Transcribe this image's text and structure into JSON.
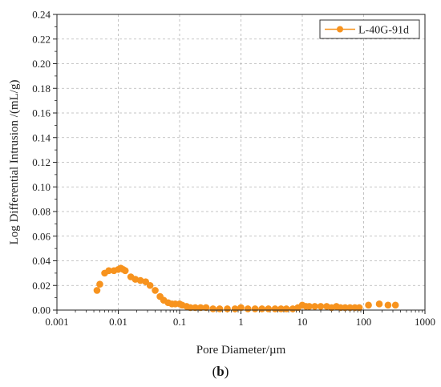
{
  "chart_data": {
    "type": "scatter",
    "xlabel": "Pore Diameter/µm",
    "ylabel": "Log Differential Intrusion /(mL/g)",
    "xscale": "log",
    "xlim": [
      0.001,
      1000
    ],
    "ylim": [
      0,
      0.24
    ],
    "x_ticks": [
      "0.001",
      "0.01",
      "0.1",
      "1",
      "10",
      "100",
      "1000"
    ],
    "y_ticks": [
      "0.00",
      "0.02",
      "0.04",
      "0.06",
      "0.08",
      "0.10",
      "0.12",
      "0.14",
      "0.16",
      "0.18",
      "0.20",
      "0.22",
      "0.24"
    ],
    "grid": true,
    "legend_position": "top-right",
    "series": [
      {
        "name": "L-40G-91d",
        "color": "#F7931E",
        "marker": "circle",
        "points": [
          [
            0.0045,
            0.016
          ],
          [
            0.005,
            0.021
          ],
          [
            0.006,
            0.03
          ],
          [
            0.007,
            0.032
          ],
          [
            0.0085,
            0.032
          ],
          [
            0.01,
            0.033
          ],
          [
            0.011,
            0.034
          ],
          [
            0.012,
            0.033
          ],
          [
            0.013,
            0.032
          ],
          [
            0.016,
            0.027
          ],
          [
            0.019,
            0.025
          ],
          [
            0.023,
            0.024
          ],
          [
            0.028,
            0.023
          ],
          [
            0.033,
            0.02
          ],
          [
            0.04,
            0.016
          ],
          [
            0.048,
            0.011
          ],
          [
            0.055,
            0.008
          ],
          [
            0.065,
            0.006
          ],
          [
            0.075,
            0.005
          ],
          [
            0.085,
            0.005
          ],
          [
            0.1,
            0.005
          ],
          [
            0.11,
            0.004
          ],
          [
            0.13,
            0.003
          ],
          [
            0.15,
            0.002
          ],
          [
            0.18,
            0.002
          ],
          [
            0.22,
            0.002
          ],
          [
            0.27,
            0.002
          ],
          [
            0.35,
            0.001
          ],
          [
            0.45,
            0.001
          ],
          [
            0.6,
            0.001
          ],
          [
            0.8,
            0.001
          ],
          [
            1.0,
            0.002
          ],
          [
            1.3,
            0.001
          ],
          [
            1.7,
            0.001
          ],
          [
            2.2,
            0.001
          ],
          [
            2.8,
            0.001
          ],
          [
            3.6,
            0.001
          ],
          [
            4.5,
            0.001
          ],
          [
            5.5,
            0.001
          ],
          [
            7,
            0.001
          ],
          [
            8.5,
            0.002
          ],
          [
            10,
            0.004
          ],
          [
            11.5,
            0.003
          ],
          [
            13,
            0.003
          ],
          [
            16,
            0.003
          ],
          [
            20,
            0.003
          ],
          [
            25,
            0.003
          ],
          [
            30,
            0.002
          ],
          [
            36,
            0.003
          ],
          [
            42,
            0.002
          ],
          [
            50,
            0.002
          ],
          [
            60,
            0.002
          ],
          [
            72,
            0.002
          ],
          [
            85,
            0.002
          ],
          [
            120,
            0.004
          ],
          [
            180,
            0.005
          ],
          [
            250,
            0.004
          ],
          [
            330,
            0.004
          ]
        ]
      }
    ]
  },
  "figure": {
    "caption_open": "(",
    "caption_letter": "b",
    "caption_close": ")"
  }
}
